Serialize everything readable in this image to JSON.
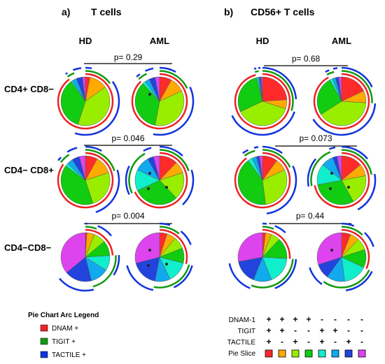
{
  "panels": [
    {
      "label": "a)",
      "title": "T cells"
    },
    {
      "label": "b)",
      "title": "CD56+ T cells"
    }
  ],
  "groups": [
    "HD",
    "AML"
  ],
  "rows": [
    "CD4+ CD8−",
    "CD4− CD8+",
    "CD4−CD8−"
  ],
  "colors": {
    "slices": [
      "#ff2b2b",
      "#ffaa00",
      "#99ee00",
      "#11cc11",
      "#11eecc",
      "#11aaee",
      "#2244dd",
      "#dd44ee"
    ],
    "arc_dnam": "#ee2222",
    "arc_tigit": "#119911",
    "arc_tactile": "#1133dd"
  },
  "legend": {
    "title": "Pie Chart Arc Legend",
    "items": [
      {
        "label": "DNAM +",
        "color": "#ee2222"
      },
      {
        "label": "TIGIT +",
        "color": "#119911"
      },
      {
        "label": "TACTILE +",
        "color": "#1133dd"
      }
    ]
  },
  "slice_key": {
    "row_labels": [
      "DNAM-1",
      "TIGIT",
      "TACTILE",
      "Pie Slice"
    ],
    "signs": [
      [
        "+",
        "+",
        "+",
        "+",
        "-",
        "-",
        "-",
        "-"
      ],
      [
        "+",
        "+",
        "-",
        "-",
        "+",
        "+",
        "-",
        "-"
      ],
      [
        "+",
        "-",
        "+",
        "-",
        "+",
        "-",
        "+",
        "-"
      ]
    ]
  },
  "chart_data": [
    {
      "type": "pie",
      "panel": "T cells",
      "row": "CD4+ CD8−",
      "p_label": "p= 0.29",
      "pies": [
        {
          "group": "HD",
          "values": [
            3,
            12,
            40,
            35,
            1,
            3,
            4,
            2
          ]
        },
        {
          "group": "AML",
          "values": [
            8,
            10,
            35,
            35,
            2,
            3,
            4,
            3
          ],
          "stars": 1
        }
      ]
    },
    {
      "type": "pie",
      "panel": "T cells",
      "row": "CD4− CD8+",
      "p_label": "p= 0.046",
      "pies": [
        {
          "group": "HD",
          "values": [
            8,
            12,
            25,
            40,
            2,
            4,
            5,
            4
          ]
        },
        {
          "group": "AML",
          "values": [
            12,
            8,
            18,
            30,
            14,
            10,
            4,
            4
          ],
          "stars": 3
        }
      ]
    },
    {
      "type": "pie",
      "panel": "T cells",
      "row": "CD4−CD8−",
      "p_label": "p= 0.004",
      "pies": [
        {
          "group": "HD",
          "values": [
            1,
            5,
            8,
            10,
            10,
            12,
            18,
            36
          ]
        },
        {
          "group": "AML",
          "values": [
            5,
            6,
            8,
            10,
            14,
            10,
            18,
            29
          ],
          "stars": 3
        }
      ]
    },
    {
      "type": "pie",
      "panel": "CD56+ T cells",
      "row": "CD4+ CD8−",
      "p_label": "p= 0.68",
      "pies": [
        {
          "group": "HD",
          "values": [
            24,
            6,
            38,
            28,
            1,
            1,
            1,
            1
          ]
        },
        {
          "group": "AML",
          "values": [
            18,
            8,
            40,
            26,
            2,
            2,
            2,
            2
          ]
        }
      ]
    },
    {
      "type": "pie",
      "panel": "CD56+ T cells",
      "row": "CD4− CD8+",
      "p_label": "p= 0.073",
      "pies": [
        {
          "group": "HD",
          "values": [
            10,
            8,
            30,
            42,
            3,
            3,
            2,
            2
          ]
        },
        {
          "group": "AML",
          "values": [
            14,
            8,
            20,
            30,
            14,
            8,
            3,
            3
          ],
          "stars": 3
        }
      ]
    },
    {
      "type": "pie",
      "panel": "CD56+ T cells",
      "row": "CD4−CD8−",
      "p_label": "p= 0.44",
      "pies": [
        {
          "group": "HD",
          "values": [
            2,
            4,
            6,
            14,
            18,
            12,
            16,
            28
          ]
        },
        {
          "group": "AML",
          "values": [
            6,
            6,
            8,
            12,
            16,
            12,
            10,
            30
          ],
          "stars": 1
        }
      ]
    }
  ]
}
